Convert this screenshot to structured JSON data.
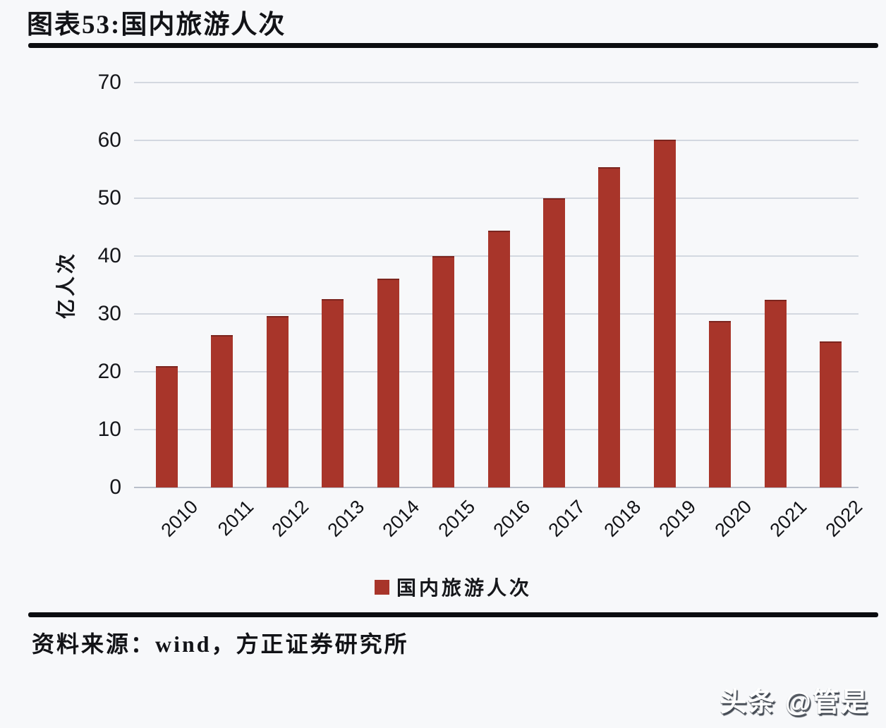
{
  "title": "图表53:国内旅游人次",
  "chart_data": {
    "type": "bar",
    "categories": [
      "2010",
      "2011",
      "2012",
      "2013",
      "2014",
      "2015",
      "2016",
      "2017",
      "2018",
      "2019",
      "2020",
      "2021",
      "2022"
    ],
    "values": [
      21.0,
      26.4,
      29.6,
      32.6,
      36.1,
      40.0,
      44.4,
      50.0,
      55.4,
      60.1,
      28.8,
      32.5,
      25.3
    ],
    "series_name": "国内旅游人次",
    "title": "图表53:国内旅游人次",
    "xlabel": "",
    "ylabel": "亿人次",
    "ylim": [
      0,
      70
    ],
    "yticks": [
      0,
      10,
      20,
      30,
      40,
      50,
      60,
      70
    ],
    "grid": true,
    "legend_position": "bottom",
    "bar_color": "#a8352a"
  },
  "legend": {
    "label": "国内旅游人次"
  },
  "footer": {
    "source_note": "资料来源：wind，方正证券研究所"
  },
  "watermark": {
    "text": "头条 @管是"
  }
}
